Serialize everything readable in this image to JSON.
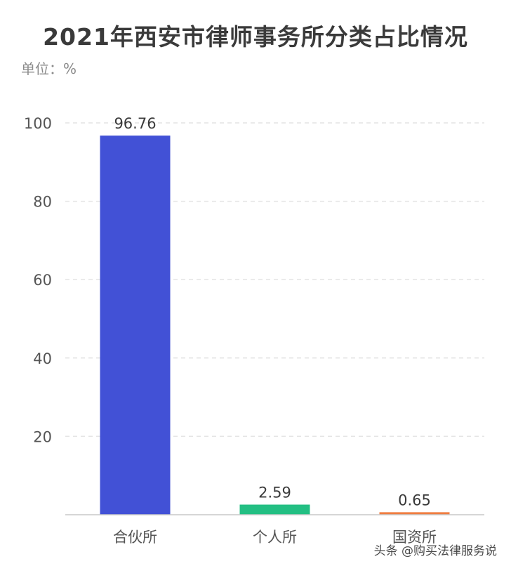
{
  "unit_label": "单位：%",
  "watermark": "头条 @购买法律服务说",
  "chart_data": {
    "type": "bar",
    "title": "2021年西安市律师事务所分类占比情况",
    "xlabel": "",
    "ylabel": "",
    "categories": [
      "合伙所",
      "个人所",
      "国资所"
    ],
    "values": [
      96.76,
      2.59,
      0.65
    ],
    "value_labels": [
      "96.76",
      "2.59",
      "0.65"
    ],
    "colors": [
      "#4251d6",
      "#23bf83",
      "#ef7d42"
    ],
    "ylim": [
      0,
      100
    ],
    "yticks": [
      20,
      40,
      60,
      80,
      100
    ],
    "ytick_labels": [
      "20",
      "40",
      "60",
      "80",
      "100"
    ],
    "grid": true,
    "legend": "none"
  }
}
